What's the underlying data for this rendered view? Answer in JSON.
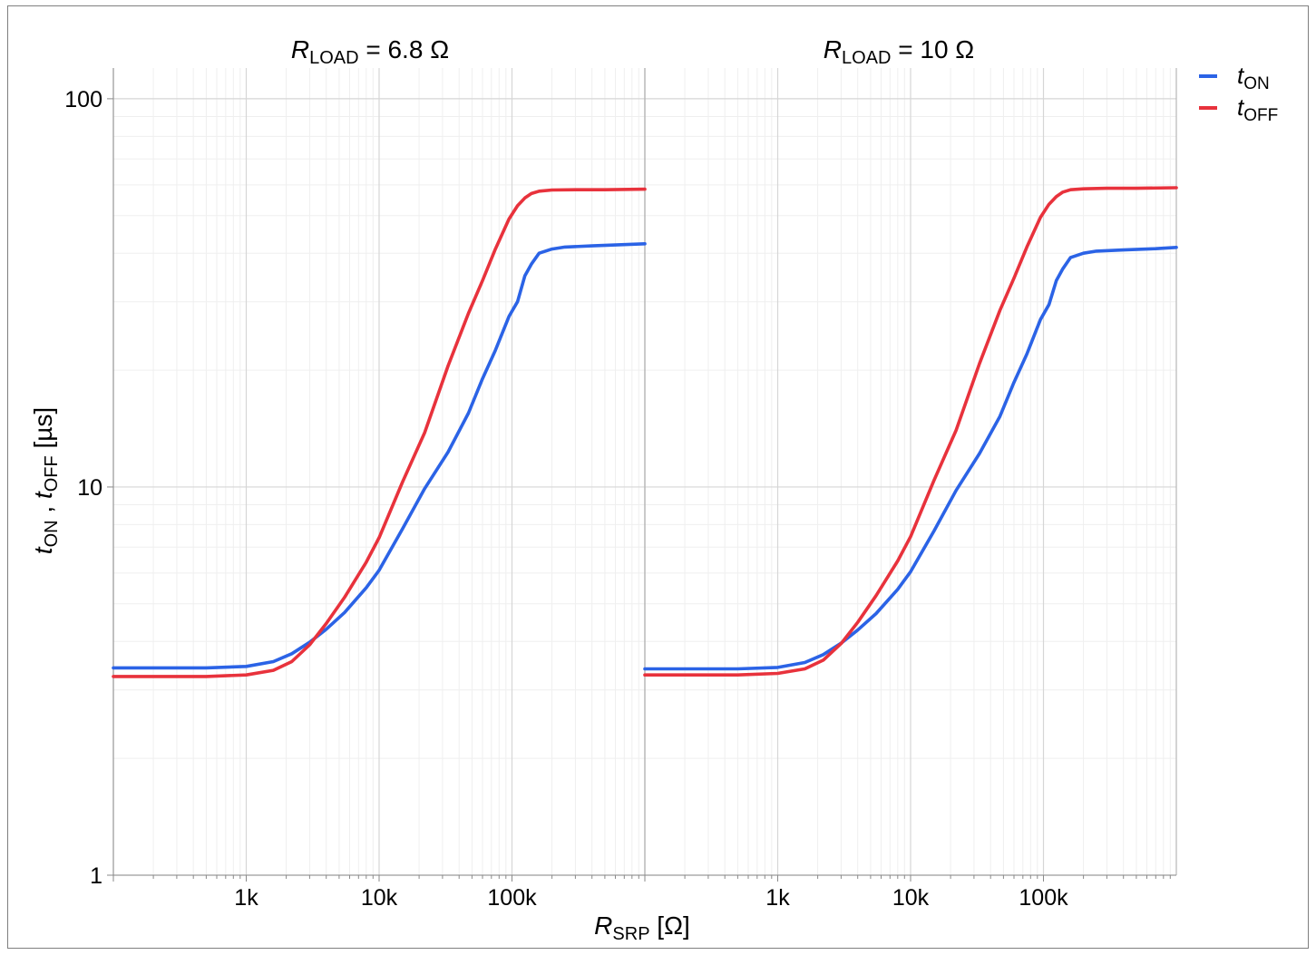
{
  "chart_data": {
    "type": "line",
    "x_scale": "log",
    "y_scale": "log",
    "xlim": [
      100,
      1000000
    ],
    "ylim": [
      1,
      120
    ],
    "grid": true,
    "legend_position": "top-right",
    "y_ticks": [
      {
        "value": 1,
        "label": "1"
      },
      {
        "value": 10,
        "label": "10"
      },
      {
        "value": 100,
        "label": "100"
      }
    ],
    "x_ticks": [
      {
        "value": 1000,
        "label": "1k"
      },
      {
        "value": 10000,
        "label": "10k"
      },
      {
        "value": 100000,
        "label": "100k"
      }
    ],
    "ylabel": {
      "t1": "t",
      "s1": "ON",
      "sep": " , ",
      "t2": "t",
      "s2": "OFF",
      "unit": " [µs]"
    },
    "xlabel": {
      "main": "R",
      "sub": "SRP",
      "unit": " [Ω]"
    },
    "legend": [
      {
        "series": "tON",
        "t": "t",
        "sub": "ON",
        "color": "#2b63e6"
      },
      {
        "series": "tOFF",
        "t": "t",
        "sub": "OFF",
        "color": "#e8323c"
      }
    ],
    "panels": [
      {
        "title": {
          "main": "R",
          "sub": "LOAD",
          "rest": " = 6.8 Ω"
        },
        "series": [
          {
            "name": "tON",
            "color": "#2b63e6",
            "x": [
              100,
              500,
              1000,
              1600,
              2200,
              3000,
              4000,
              5500,
              8000,
              10000,
              15000,
              22000,
              33000,
              47000,
              60000,
              75000,
              95000,
              110000,
              125000,
              140000,
              160000,
              200000,
              250000,
              400000,
              700000,
              1000000
            ],
            "y": [
              3.42,
              3.42,
              3.45,
              3.55,
              3.72,
              3.98,
              4.3,
              4.75,
              5.5,
              6.1,
              7.8,
              9.9,
              12.3,
              15.5,
              19,
              22.5,
              27.5,
              30,
              35,
              37.5,
              40,
              41,
              41.5,
              41.8,
              42.1,
              42.3
            ]
          },
          {
            "name": "tOFF",
            "color": "#e8323c",
            "x": [
              100,
              500,
              1000,
              1600,
              2200,
              3000,
              4000,
              5500,
              8000,
              10000,
              15000,
              22000,
              33000,
              47000,
              60000,
              75000,
              95000,
              110000,
              125000,
              140000,
              160000,
              200000,
              300000,
              500000,
              1000000
            ],
            "y": [
              3.25,
              3.25,
              3.28,
              3.37,
              3.55,
              3.92,
              4.45,
              5.2,
              6.4,
              7.4,
              10.3,
              13.8,
              20.5,
              28,
              34,
              41,
              49,
              53,
              55.5,
              57,
              57.8,
              58.2,
              58.3,
              58.3,
              58.5
            ]
          }
        ]
      },
      {
        "title": {
          "main": "R",
          "sub": "LOAD",
          "rest": " = 10 Ω"
        },
        "series": [
          {
            "name": "tON",
            "color": "#2b63e6",
            "x": [
              100,
              500,
              1000,
              1600,
              2200,
              3000,
              4000,
              5500,
              8000,
              10000,
              15000,
              22000,
              33000,
              47000,
              60000,
              75000,
              95000,
              110000,
              125000,
              140000,
              160000,
              200000,
              250000,
              400000,
              700000,
              1000000
            ],
            "y": [
              3.4,
              3.4,
              3.43,
              3.53,
              3.7,
              3.96,
              4.28,
              4.72,
              5.45,
              6.05,
              7.7,
              9.8,
              12.2,
              15.2,
              18.6,
              22,
              27,
              29.5,
              34,
              36.5,
              39,
              40,
              40.5,
              40.8,
              41.1,
              41.4
            ]
          },
          {
            "name": "tOFF",
            "color": "#e8323c",
            "x": [
              100,
              500,
              1000,
              1600,
              2200,
              3000,
              4000,
              5500,
              8000,
              10000,
              15000,
              22000,
              33000,
              47000,
              60000,
              75000,
              95000,
              110000,
              125000,
              140000,
              160000,
              200000,
              300000,
              500000,
              1000000
            ],
            "y": [
              3.28,
              3.28,
              3.31,
              3.4,
              3.58,
              3.95,
              4.48,
              5.25,
              6.45,
              7.45,
              10.4,
              14,
              20.8,
              28.5,
              34.5,
              41.5,
              49.5,
              53.5,
              56,
              57.5,
              58.3,
              58.6,
              58.8,
              58.8,
              59
            ]
          }
        ]
      }
    ]
  }
}
